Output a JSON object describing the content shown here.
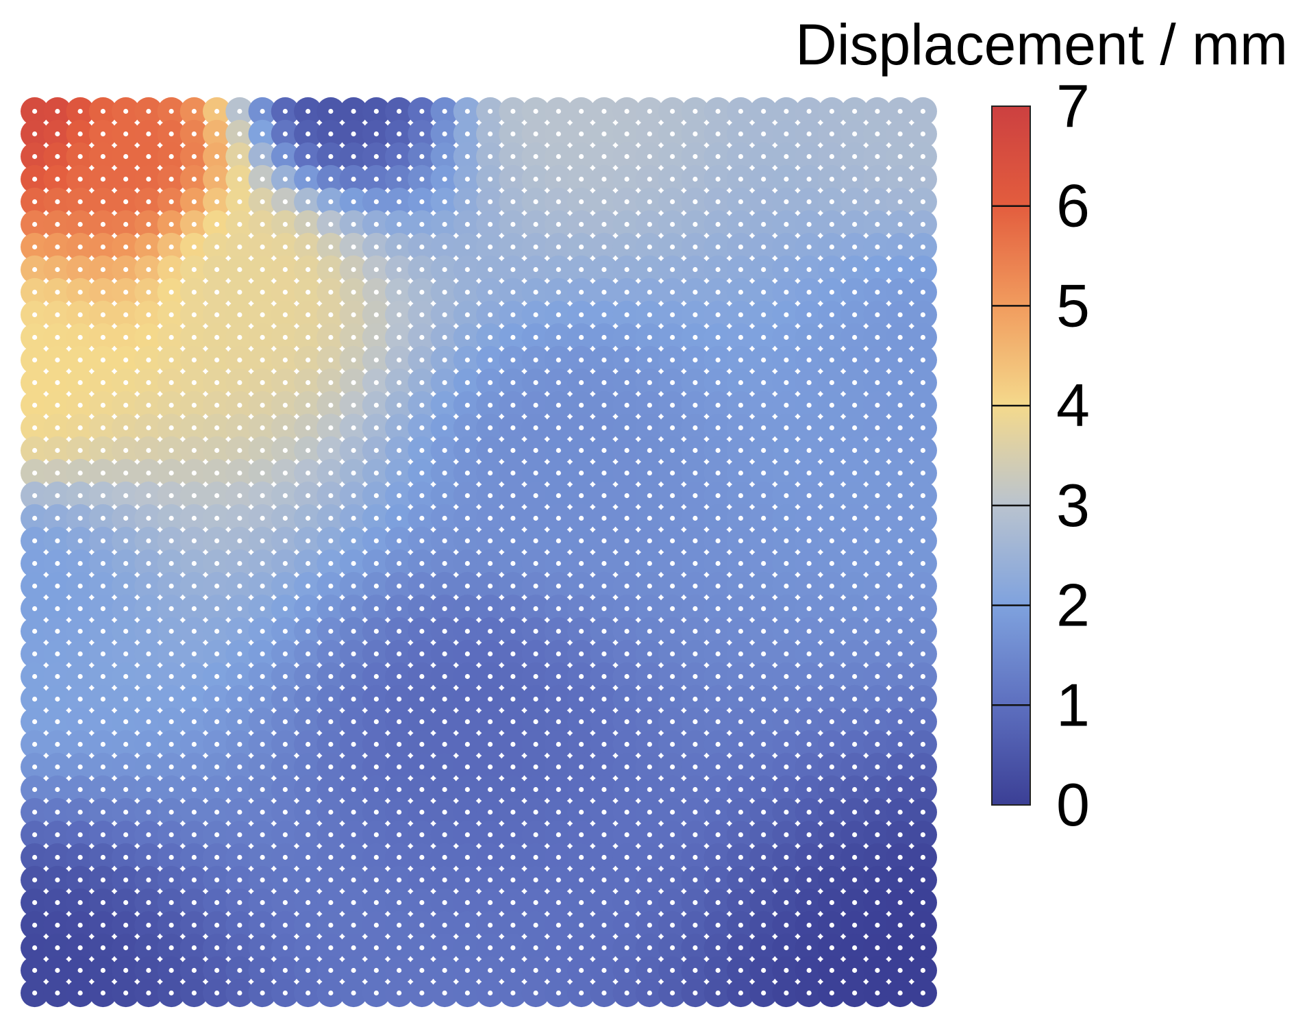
{
  "chart_data": {
    "type": "heatmap",
    "colorbar": {
      "title": "Displacement / mm",
      "range": [
        0,
        7
      ],
      "ticks": [
        "0",
        "1",
        "2",
        "3",
        "4",
        "5",
        "6",
        "7"
      ],
      "levels": 7,
      "colors": [
        "#3b3f95",
        "#5d6fbf",
        "#7fa2de",
        "#b9c3cf",
        "#f4d98c",
        "#f19c5e",
        "#e35d3e",
        "#cc4040"
      ],
      "interpolation": "diverging blue-grey-yellow-red"
    },
    "grid": {
      "columns": 40,
      "rows": 40,
      "marker": "white dot at each node"
    },
    "field": {
      "description_points": [
        {
          "x": 0.0,
          "y": 0.0,
          "value": 6.6
        },
        {
          "x": 0.12,
          "y": 0.06,
          "value": 5.8
        },
        {
          "x": 0.25,
          "y": 0.2,
          "value": 3.8
        },
        {
          "x": 0.35,
          "y": 0.0,
          "value": 0.5
        },
        {
          "x": 0.6,
          "y": 0.0,
          "value": 3.0
        },
        {
          "x": 1.0,
          "y": 0.0,
          "value": 2.8
        },
        {
          "x": 0.0,
          "y": 0.3,
          "value": 4.0
        },
        {
          "x": 0.0,
          "y": 0.55,
          "value": 2.0
        },
        {
          "x": 0.6,
          "y": 0.4,
          "value": 1.6
        },
        {
          "x": 1.0,
          "y": 0.3,
          "value": 1.8
        },
        {
          "x": 0.5,
          "y": 0.7,
          "value": 0.9
        },
        {
          "x": 0.0,
          "y": 1.0,
          "value": 0.2
        },
        {
          "x": 1.0,
          "y": 1.0,
          "value": 0.0
        }
      ]
    }
  }
}
